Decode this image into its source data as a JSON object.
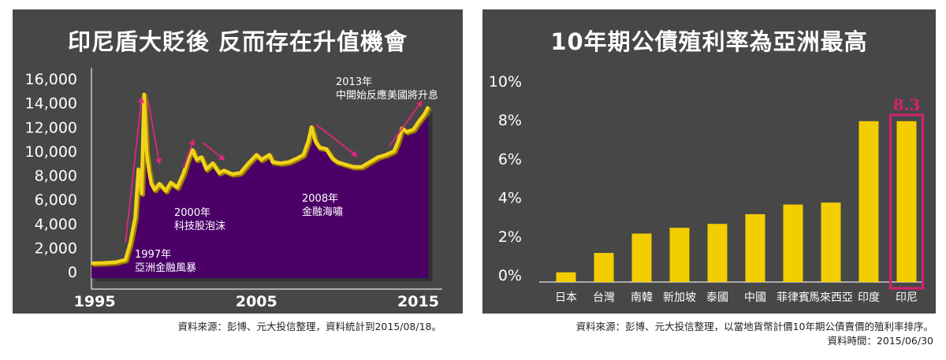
{
  "left_panel": {
    "title": "印尼盾大貶後 反而存在升值機會",
    "source": "資料來源：彭博、元大投信整理，資料統計到2015/08/18。"
  },
  "right_panel": {
    "title": "10年期公債殖利率為亞洲最高",
    "source": "資料來源：彭博、元大投信整理，以當地貨幣計價10年期公債賣價的殖利率排序。",
    "date_note": "資料時間：2015/06/30"
  },
  "colors": {
    "panel_bg": "#474747",
    "area_fill": "#4b0067",
    "line": "#f2d31a",
    "arrow": "#e0267e",
    "bar": "#f2cd00",
    "highlight_box": "#d6216f"
  },
  "chart_data": [
    {
      "type": "area",
      "title": "印尼盾大貶後 反而存在升值機會",
      "ylim": [
        0,
        16000
      ],
      "yticks": [
        "0",
        "2,000",
        "4,000",
        "6,000",
        "8,000",
        "10,000",
        "12,000",
        "14,000",
        "16,000"
      ],
      "xlim": [
        1994.8,
        2016
      ],
      "xticks": [
        "1995",
        "2005",
        "2015"
      ],
      "series": [
        {
          "values": [
            [
              1994.8,
              700
            ],
            [
              1995.5,
              730
            ],
            [
              1996.3,
              800
            ],
            [
              1996.9,
              1000
            ],
            [
              1997.2,
              2400
            ],
            [
              1997.5,
              4500
            ],
            [
              1997.7,
              8500
            ],
            [
              1997.9,
              6500
            ],
            [
              1998.05,
              14700
            ],
            [
              1998.2,
              10000
            ],
            [
              1998.35,
              8400
            ],
            [
              1998.5,
              7300
            ],
            [
              1998.7,
              6800
            ],
            [
              1999.0,
              7300
            ],
            [
              1999.4,
              6700
            ],
            [
              1999.7,
              7400
            ],
            [
              2000.1,
              7000
            ],
            [
              2000.5,
              8200
            ],
            [
              2000.8,
              9500
            ],
            [
              2001.05,
              10100
            ],
            [
              2001.3,
              9300
            ],
            [
              2001.6,
              9500
            ],
            [
              2001.9,
              8500
            ],
            [
              2002.3,
              9000
            ],
            [
              2002.7,
              8200
            ],
            [
              2003.0,
              8400
            ],
            [
              2003.5,
              8100
            ],
            [
              2004.0,
              8200
            ],
            [
              2004.5,
              9000
            ],
            [
              2005.0,
              9700
            ],
            [
              2005.3,
              9300
            ],
            [
              2005.8,
              9700
            ],
            [
              2006.0,
              9100
            ],
            [
              2006.5,
              9000
            ],
            [
              2007.0,
              9100
            ],
            [
              2007.5,
              9400
            ],
            [
              2007.9,
              9700
            ],
            [
              2008.2,
              10800
            ],
            [
              2008.4,
              12000
            ],
            [
              2008.65,
              10800
            ],
            [
              2008.9,
              10300
            ],
            [
              2009.3,
              10200
            ],
            [
              2009.7,
              9400
            ],
            [
              2010.0,
              9100
            ],
            [
              2010.5,
              8900
            ],
            [
              2011.0,
              8700
            ],
            [
              2011.5,
              8700
            ],
            [
              2012.0,
              9100
            ],
            [
              2012.5,
              9500
            ],
            [
              2013.0,
              9700
            ],
            [
              2013.5,
              10000
            ],
            [
              2013.75,
              10800
            ],
            [
              2014.0,
              11900
            ],
            [
              2014.3,
              11600
            ],
            [
              2014.7,
              11800
            ],
            [
              2015.0,
              12400
            ],
            [
              2015.4,
              13100
            ],
            [
              2015.63,
              13700
            ]
          ]
        }
      ],
      "annotations": [
        {
          "lines": [
            "1997年",
            "亞洲金融風暴"
          ]
        },
        {
          "lines": [
            "2000年",
            "科技股泡沫"
          ]
        },
        {
          "lines": [
            "2008年",
            "金融海嘯"
          ]
        },
        {
          "lines": [
            "2013年",
            "中開始反應美國將升息"
          ]
        }
      ]
    },
    {
      "type": "bar",
      "title": "10年期公債殖利率為亞洲最高",
      "categories": [
        "日本",
        "台灣",
        "南韓",
        "新加坡",
        "泰國",
        "中國",
        "菲律賓",
        "馬來西亞",
        "印度",
        "印尼"
      ],
      "values": [
        0.5,
        1.5,
        2.5,
        2.8,
        3.0,
        3.5,
        4.0,
        4.1,
        8.3,
        8.3
      ],
      "ylim": [
        0,
        10
      ],
      "yticks": [
        "0%",
        "2%",
        "4%",
        "6%",
        "8%",
        "10%"
      ],
      "highlight": {
        "category": "印尼",
        "label": "8.3"
      }
    }
  ]
}
